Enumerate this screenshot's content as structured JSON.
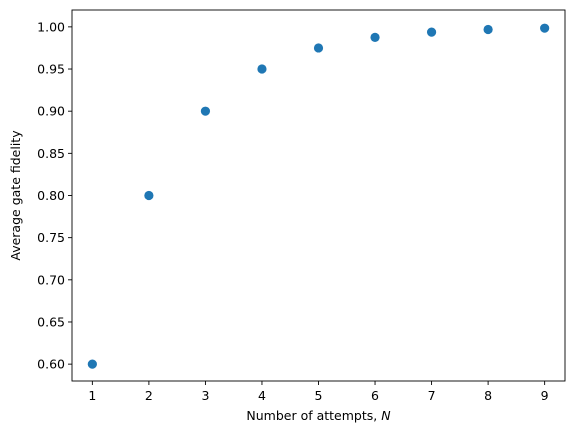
{
  "chart_data": {
    "type": "scatter",
    "title": "",
    "xlabel": "Number of attempts, ",
    "xlabel_var": "N",
    "ylabel": "Average gate fidelity",
    "x": [
      1,
      2,
      3,
      4,
      5,
      6,
      7,
      8,
      9
    ],
    "y": [
      0.6,
      0.8,
      0.9,
      0.95,
      0.975,
      0.9875,
      0.99375,
      0.996875,
      0.998438
    ],
    "xlim": [
      0.64,
      9.36
    ],
    "ylim": [
      0.58,
      1.02
    ],
    "xticks": [
      1,
      2,
      3,
      4,
      5,
      6,
      7,
      8,
      9
    ],
    "yticks": [
      0.6,
      0.65,
      0.7,
      0.75,
      0.8,
      0.85,
      0.9,
      0.95,
      1.0
    ],
    "ytick_labels": [
      "0.60",
      "0.65",
      "0.70",
      "0.75",
      "0.80",
      "0.85",
      "0.90",
      "0.95",
      "1.00"
    ],
    "marker_color": "#1f77b4",
    "grid": false
  }
}
